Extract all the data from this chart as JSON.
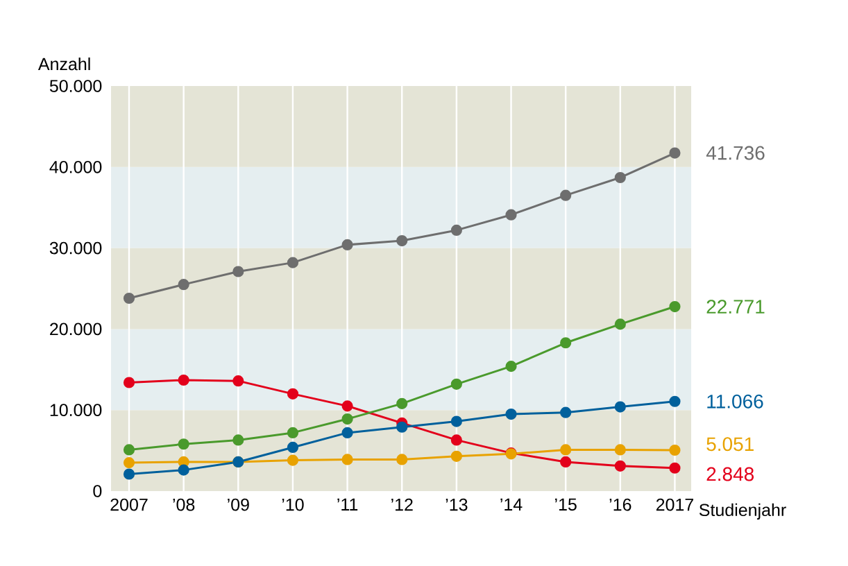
{
  "chart_data": {
    "type": "line",
    "ylabel": "Anzahl",
    "xlabel": "Studienjahr",
    "categories": [
      "2007",
      "’08",
      "’09",
      "’10",
      "’11",
      "’12",
      "’13",
      "’14",
      "’15",
      "’16",
      "2017"
    ],
    "series": [
      {
        "color": "#e3001b",
        "values": [
          13400,
          13700,
          13600,
          12000,
          10500,
          8400,
          6300,
          4700,
          3600,
          3100,
          2848
        ],
        "value_labels": [
          null,
          null,
          null,
          null,
          null,
          null,
          null,
          null,
          null,
          null,
          "2.848"
        ]
      },
      {
        "color": "#e8a200",
        "values": [
          3500,
          3600,
          3600,
          3800,
          3900,
          3900,
          4300,
          4600,
          5100,
          5100,
          5051
        ],
        "value_labels": [
          null,
          null,
          null,
          null,
          null,
          null,
          null,
          null,
          null,
          null,
          "5.051"
        ]
      },
      {
        "color": "#00609c",
        "values": [
          2100,
          2600,
          3600,
          5400,
          7200,
          7900,
          8600,
          9500,
          9700,
          10400,
          11066
        ],
        "value_labels": [
          null,
          null,
          null,
          null,
          null,
          null,
          null,
          null,
          null,
          null,
          "11.066"
        ]
      },
      {
        "color": "#4a9a2c",
        "values": [
          5100,
          5800,
          6300,
          7200,
          8900,
          10800,
          13200,
          15400,
          18300,
          20600,
          22771
        ],
        "value_labels": [
          null,
          null,
          null,
          null,
          null,
          null,
          null,
          null,
          null,
          null,
          "22.771"
        ]
      },
      {
        "color": "#6e6e6e",
        "values": [
          23800,
          25500,
          27100,
          28200,
          30400,
          30900,
          32200,
          34100,
          36500,
          38700,
          41736
        ],
        "value_labels": [
          null,
          null,
          null,
          null,
          null,
          null,
          null,
          null,
          null,
          null,
          "41.736"
        ]
      }
    ],
    "ylim": [
      0,
      50000
    ],
    "yticks": [
      {
        "value": 0,
        "label": "0"
      },
      {
        "value": 10000,
        "label": "10.000"
      },
      {
        "value": 20000,
        "label": "20.000"
      },
      {
        "value": 30000,
        "label": "30.000"
      },
      {
        "value": 40000,
        "label": "40.000"
      },
      {
        "value": 50000,
        "label": "50.000"
      }
    ],
    "bands": [
      {
        "axis": "y",
        "from": 0,
        "to": 10000,
        "color": "#e4e4d6"
      },
      {
        "axis": "y",
        "from": 10000,
        "to": 20000,
        "color": "#e5eef0"
      },
      {
        "axis": "y",
        "from": 20000,
        "to": 30000,
        "color": "#e4e4d6"
      },
      {
        "axis": "y",
        "from": 30000,
        "to": 40000,
        "color": "#e5eef0"
      },
      {
        "axis": "y",
        "from": 40000,
        "to": 50000,
        "color": "#e4e4d6"
      }
    ],
    "grid": "x",
    "marker": "circle"
  }
}
